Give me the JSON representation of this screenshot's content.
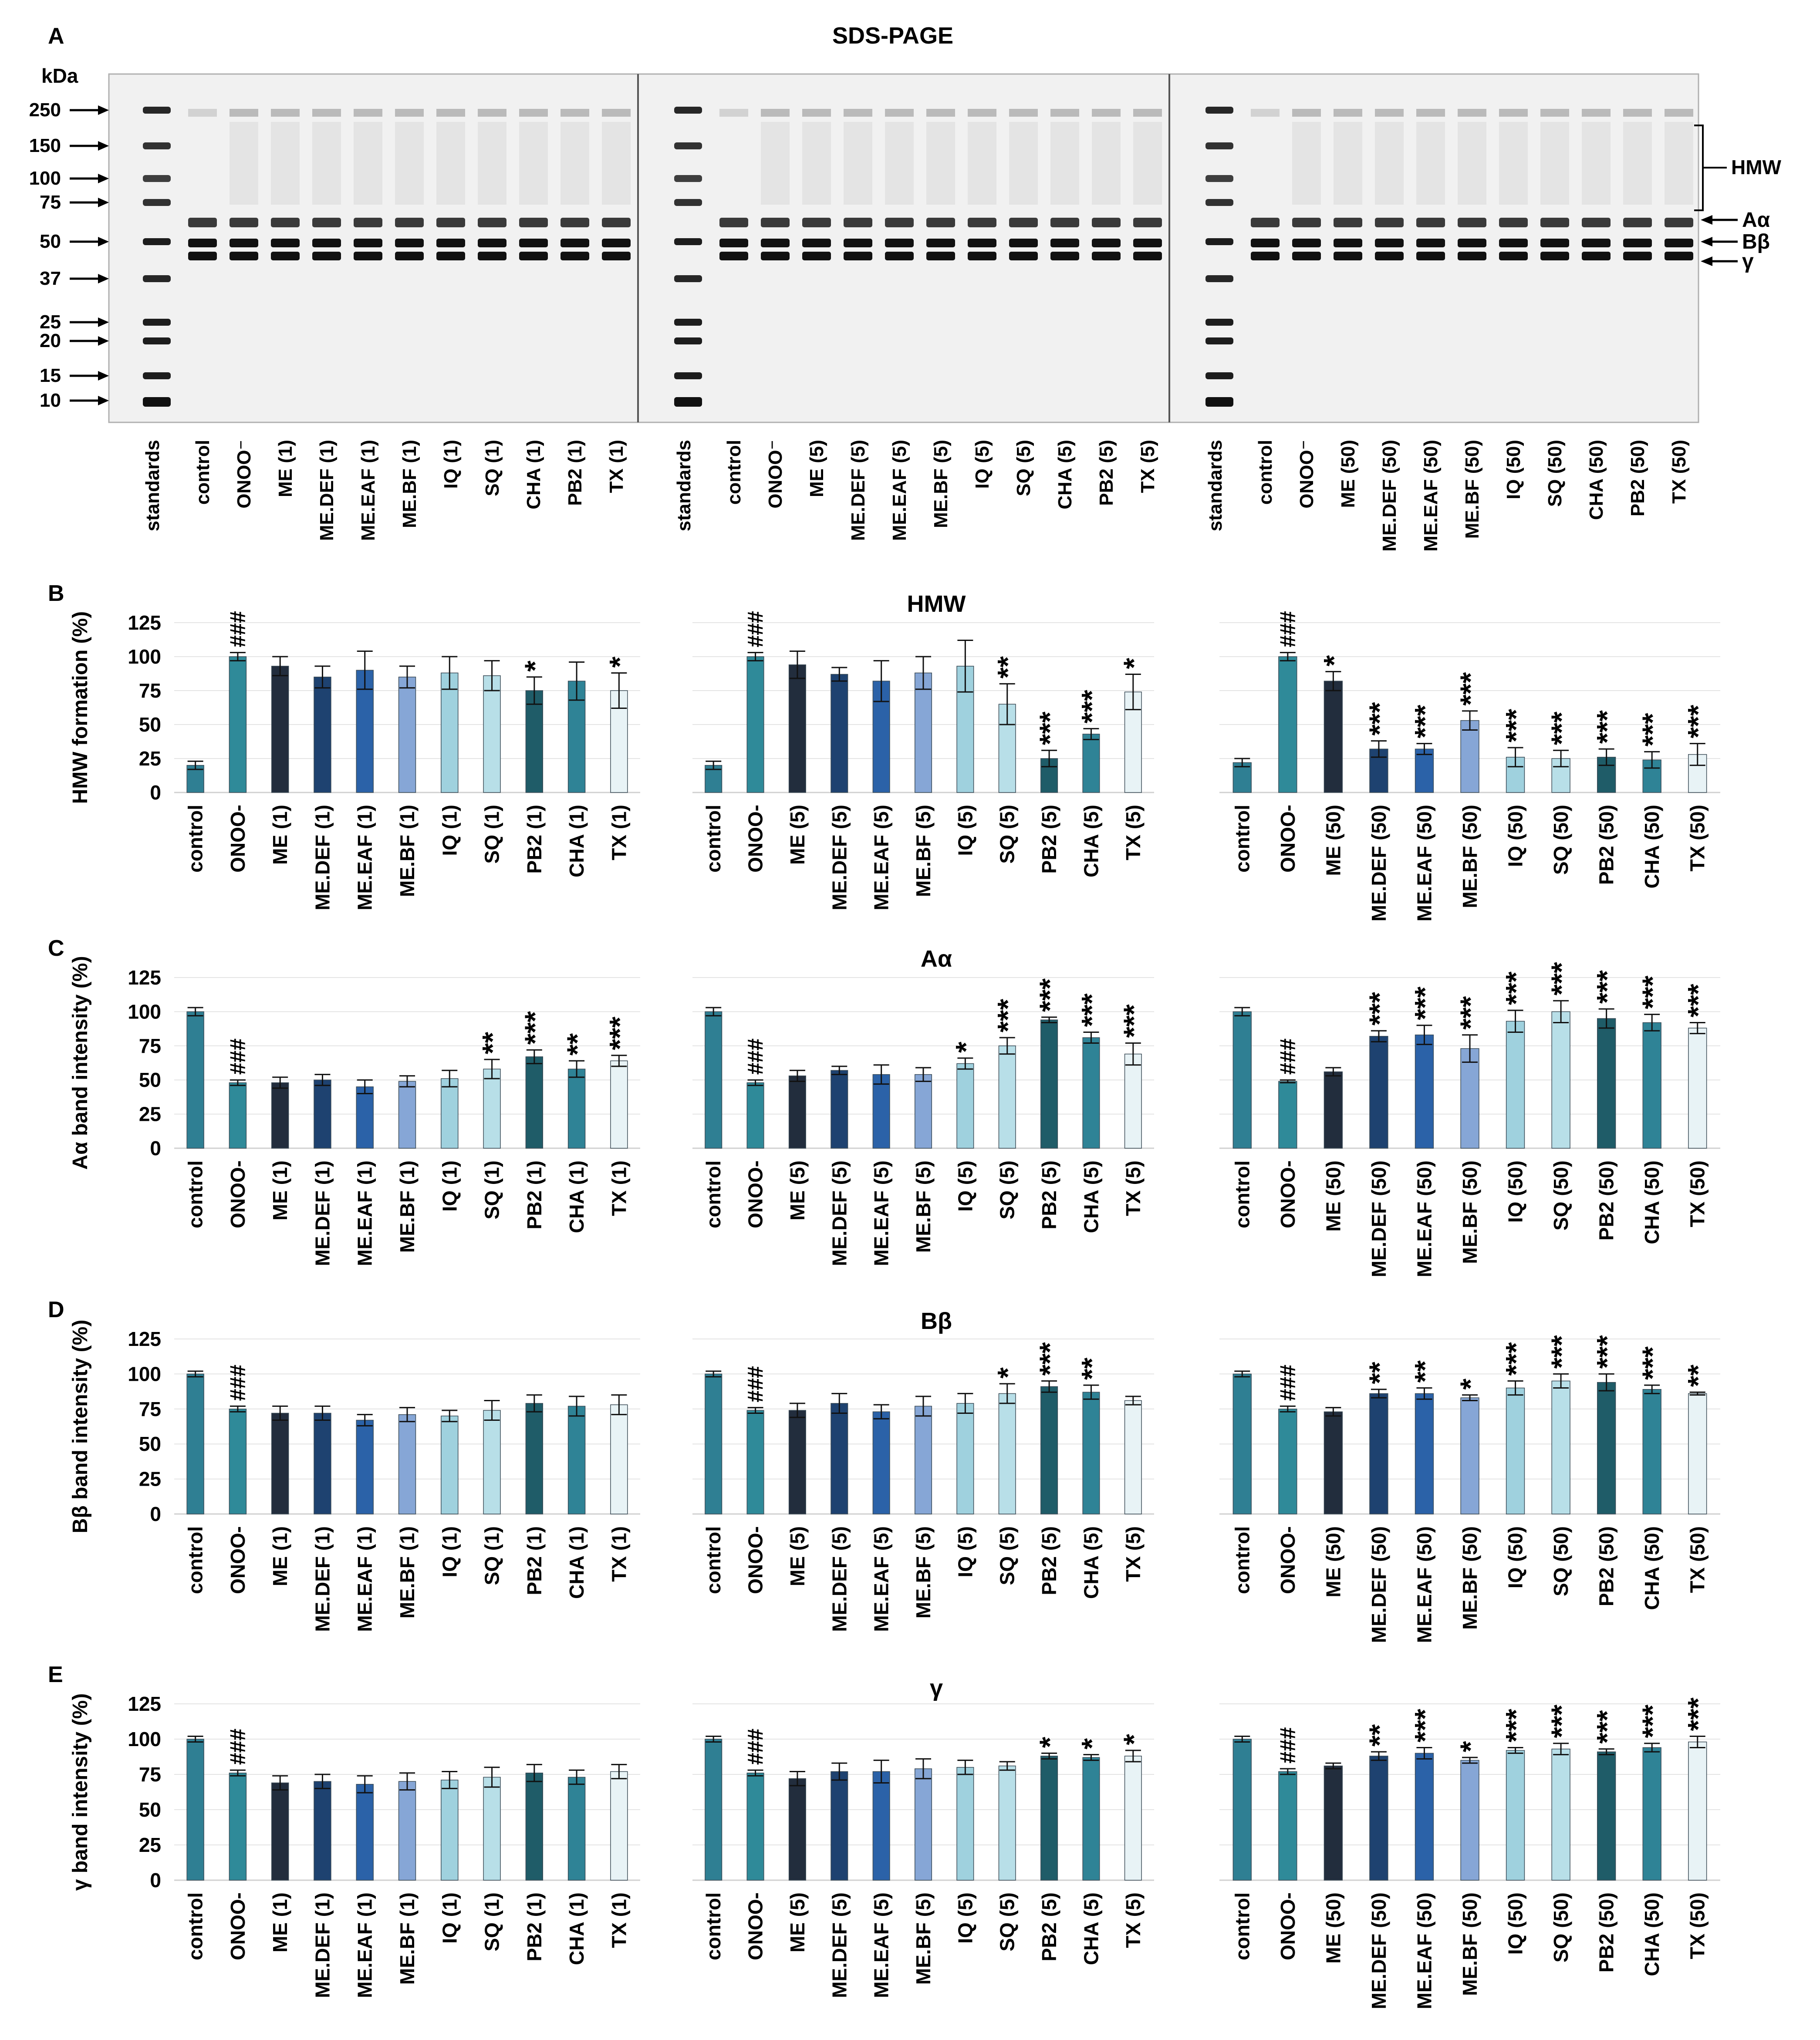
{
  "title": "SDS-PAGE",
  "gel": {
    "panel_letter": "A",
    "unit_label": "kDa",
    "markers": [
      "250",
      "150",
      "100",
      "75",
      "50",
      "37",
      "25",
      "20",
      "15",
      "10"
    ],
    "band_labels": {
      "hmw": "HMW",
      "a": "Aα",
      "b": "Bβ",
      "g": "γ"
    },
    "lane_groups": [
      [
        "standards",
        "control",
        "ONOO⁻",
        "ME (1)",
        "ME.DEF (1)",
        "ME.EAF (1)",
        "ME.BF (1)",
        "IQ (1)",
        "SQ (1)",
        "CHA (1)",
        "PB2 (1)",
        "TX (1)"
      ],
      [
        "standards",
        "control",
        "ONOO⁻",
        "ME (5)",
        "ME.DEF (5)",
        "ME.EAF (5)",
        "ME.BF (5)",
        "IQ (5)",
        "SQ (5)",
        "CHA (5)",
        "PB2 (5)",
        "TX (5)"
      ],
      [
        "standards",
        "control",
        "ONOO⁻",
        "ME (50)",
        "ME.DEF (50)",
        "ME.EAF (50)",
        "ME.BF (50)",
        "IQ (50)",
        "SQ (50)",
        "CHA (50)",
        "PB2 (50)",
        "TX (50)"
      ]
    ]
  },
  "colors": {
    "control": "#2f7f93",
    "ONOO": "#2f8a99",
    "ME": "#222d3d",
    "ME.DEF": "#1e4270",
    "ME.EAF": "#2b62a8",
    "ME.BF": "#86a6d6",
    "IQ": "#9fd1de",
    "SQ": "#b8dfe8",
    "PB2": "#1f5c68",
    "CHA": "#2f8396",
    "TX": "#e8f3f6"
  },
  "y_ticks": [
    "125",
    "100",
    "75",
    "50",
    "25",
    "0"
  ],
  "chart_data": [
    {
      "type": "bar",
      "letter": "B",
      "title": "HMW",
      "ylabel": "HMW formation (%)",
      "ylim": [
        0,
        125
      ],
      "groups": [
        {
          "categories": [
            "control",
            "ONOO-",
            "ME (1)",
            "ME.DEF (1)",
            "ME.EAF (1)",
            "ME.BF (1)",
            "IQ (1)",
            "SQ (1)",
            "PB2 (1)",
            "CHA (1)",
            "TX (1)"
          ],
          "colors": [
            "control",
            "ONOO",
            "ME",
            "ME.DEF",
            "ME.EAF",
            "ME.BF",
            "IQ",
            "SQ",
            "PB2",
            "CHA",
            "TX"
          ],
          "values": [
            20,
            100,
            93,
            85,
            90,
            85,
            88,
            86,
            75,
            82,
            75
          ],
          "errors": [
            3,
            3,
            7,
            8,
            14,
            8,
            12,
            11,
            10,
            14,
            13
          ],
          "marks": [
            "",
            "###",
            "",
            "",
            "",
            "",
            "",
            "",
            "*",
            "",
            "*"
          ]
        },
        {
          "categories": [
            "control",
            "ONOO-",
            "ME (5)",
            "ME.DEF (5)",
            "ME.EAF (5)",
            "ME.BF (5)",
            "IQ (5)",
            "SQ (5)",
            "PB2 (5)",
            "CHA (5)",
            "TX (5)"
          ],
          "colors": [
            "control",
            "ONOO",
            "ME",
            "ME.DEF",
            "ME.EAF",
            "ME.BF",
            "IQ",
            "SQ",
            "PB2",
            "CHA",
            "TX"
          ],
          "values": [
            20,
            100,
            94,
            87,
            82,
            88,
            93,
            65,
            25,
            43,
            74
          ],
          "errors": [
            3,
            3,
            10,
            5,
            15,
            12,
            19,
            15,
            6,
            4,
            13
          ],
          "marks": [
            "",
            "###",
            "",
            "",
            "",
            "",
            "",
            "**",
            "***",
            "***",
            "*"
          ]
        },
        {
          "categories": [
            "control",
            "ONOO-",
            "ME (50)",
            "ME.DEF (50)",
            "ME.EAF (50)",
            "ME.BF (50)",
            "IQ (50)",
            "SQ (50)",
            "PB2 (50)",
            "CHA (50)",
            "TX (50)"
          ],
          "colors": [
            "control",
            "ONOO",
            "ME",
            "ME.DEF",
            "ME.EAF",
            "ME.BF",
            "IQ",
            "SQ",
            "PB2",
            "CHA",
            "TX"
          ],
          "values": [
            22,
            100,
            82,
            32,
            32,
            53,
            26,
            25,
            26,
            24,
            28
          ],
          "errors": [
            3,
            3,
            7,
            6,
            4,
            7,
            7,
            6,
            6,
            6,
            8
          ],
          "marks": [
            "",
            "###",
            "*",
            "***",
            "***",
            "***",
            "***",
            "***",
            "***",
            "***",
            "***"
          ]
        }
      ]
    },
    {
      "type": "bar",
      "letter": "C",
      "title": "Aα",
      "ylabel": "Aα band intensity (%)",
      "ylim": [
        0,
        125
      ],
      "groups": [
        {
          "categories": [
            "control",
            "ONOO-",
            "ME (1)",
            "ME.DEF (1)",
            "ME.EAF (1)",
            "ME.BF (1)",
            "IQ (1)",
            "SQ (1)",
            "PB2 (1)",
            "CHA (1)",
            "TX (1)"
          ],
          "colors": [
            "control",
            "ONOO",
            "ME",
            "ME.DEF",
            "ME.EAF",
            "ME.BF",
            "IQ",
            "SQ",
            "PB2",
            "CHA",
            "TX"
          ],
          "values": [
            100,
            48,
            48,
            50,
            45,
            49,
            51,
            58,
            67,
            58,
            64
          ],
          "errors": [
            3,
            2,
            4,
            4,
            5,
            4,
            6,
            7,
            5,
            6,
            4
          ],
          "marks": [
            "",
            "###",
            "",
            "",
            "",
            "",
            "",
            "**",
            "***",
            "**",
            "***"
          ]
        },
        {
          "categories": [
            "control",
            "ONOO-",
            "ME (5)",
            "ME.DEF (5)",
            "ME.EAF (5)",
            "ME.BF (5)",
            "IQ (5)",
            "SQ (5)",
            "PB2 (5)",
            "CHA (5)",
            "TX (5)"
          ],
          "colors": [
            "control",
            "ONOO",
            "ME",
            "ME.DEF",
            "ME.EAF",
            "ME.BF",
            "IQ",
            "SQ",
            "PB2",
            "CHA",
            "TX"
          ],
          "values": [
            100,
            48,
            53,
            57,
            54,
            54,
            62,
            75,
            94,
            81,
            69
          ],
          "errors": [
            3,
            2,
            4,
            3,
            7,
            5,
            4,
            6,
            2,
            4,
            8
          ],
          "marks": [
            "",
            "###",
            "",
            "",
            "",
            "",
            "*",
            "***",
            "***",
            "***",
            "***"
          ]
        },
        {
          "categories": [
            "control",
            "ONOO-",
            "ME (50)",
            "ME.DEF (50)",
            "ME.EAF (50)",
            "ME.BF (50)",
            "IQ (50)",
            "SQ (50)",
            "PB2 (50)",
            "CHA (50)",
            "TX (50)"
          ],
          "colors": [
            "control",
            "ONOO",
            "ME",
            "ME.DEF",
            "ME.EAF",
            "ME.BF",
            "IQ",
            "SQ",
            "PB2",
            "CHA",
            "TX"
          ],
          "values": [
            100,
            49,
            56,
            82,
            83,
            73,
            93,
            100,
            95,
            92,
            88
          ],
          "errors": [
            3,
            1,
            3,
            4,
            7,
            10,
            8,
            8,
            7,
            6,
            4
          ],
          "marks": [
            "",
            "###",
            "",
            "***",
            "***",
            "***",
            "***",
            "***",
            "***",
            "***",
            "***"
          ]
        }
      ]
    },
    {
      "type": "bar",
      "letter": "D",
      "title": "Bβ",
      "ylabel": "Bβ band intensity (%)",
      "ylim": [
        0,
        125
      ],
      "groups": [
        {
          "categories": [
            "control",
            "ONOO-",
            "ME (1)",
            "ME.DEF (1)",
            "ME.EAF (1)",
            "ME.BF (1)",
            "IQ (1)",
            "SQ (1)",
            "PB2 (1)",
            "CHA (1)",
            "TX (1)"
          ],
          "colors": [
            "control",
            "ONOO",
            "ME",
            "ME.DEF",
            "ME.EAF",
            "ME.BF",
            "IQ",
            "SQ",
            "PB2",
            "CHA",
            "TX"
          ],
          "values": [
            100,
            75,
            72,
            72,
            67,
            71,
            70,
            74,
            79,
            77,
            78
          ],
          "errors": [
            2,
            2,
            5,
            5,
            4,
            5,
            4,
            7,
            6,
            7,
            7
          ],
          "marks": [
            "",
            "###",
            "",
            "",
            "",
            "",
            "",
            "",
            "",
            "",
            ""
          ]
        },
        {
          "categories": [
            "control",
            "ONOO-",
            "ME (5)",
            "ME.DEF (5)",
            "ME.EAF (5)",
            "ME.BF (5)",
            "IQ (5)",
            "SQ (5)",
            "PB2 (5)",
            "CHA (5)",
            "TX (5)"
          ],
          "colors": [
            "control",
            "ONOO",
            "ME",
            "ME.DEF",
            "ME.EAF",
            "ME.BF",
            "IQ",
            "SQ",
            "PB2",
            "CHA",
            "TX"
          ],
          "values": [
            100,
            74,
            74,
            79,
            73,
            77,
            79,
            86,
            91,
            87,
            81
          ],
          "errors": [
            2,
            2,
            5,
            7,
            5,
            7,
            7,
            7,
            4,
            5,
            3
          ],
          "marks": [
            "",
            "###",
            "",
            "",
            "",
            "",
            "",
            "*",
            "***",
            "**",
            ""
          ]
        },
        {
          "categories": [
            "control",
            "ONOO-",
            "ME (50)",
            "ME.DEF (50)",
            "ME.EAF (50)",
            "ME.BF (50)",
            "IQ (50)",
            "SQ (50)",
            "PB2 (50)",
            "CHA (50)",
            "TX (50)"
          ],
          "colors": [
            "control",
            "ONOO",
            "ME",
            "ME.DEF",
            "ME.EAF",
            "ME.BF",
            "IQ",
            "SQ",
            "PB2",
            "CHA",
            "TX"
          ],
          "values": [
            100,
            75,
            73,
            86,
            86,
            83,
            90,
            95,
            94,
            89,
            86
          ],
          "errors": [
            2,
            2,
            3,
            3,
            4,
            2,
            5,
            5,
            6,
            3,
            1
          ],
          "marks": [
            "",
            "###",
            "",
            "**",
            "**",
            "*",
            "***",
            "***",
            "***",
            "***",
            "**"
          ]
        }
      ]
    },
    {
      "type": "bar",
      "letter": "E",
      "title": "γ",
      "ylabel": "γ band intensity (%)",
      "ylim": [
        0,
        125
      ],
      "groups": [
        {
          "categories": [
            "control",
            "ONOO-",
            "ME (1)",
            "ME.DEF (1)",
            "ME.EAF (1)",
            "ME.BF (1)",
            "IQ (1)",
            "SQ (1)",
            "PB2 (1)",
            "CHA (1)",
            "TX (1)"
          ],
          "colors": [
            "control",
            "ONOO",
            "ME",
            "ME.DEF",
            "ME.EAF",
            "ME.BF",
            "IQ",
            "SQ",
            "PB2",
            "CHA",
            "TX"
          ],
          "values": [
            100,
            76,
            69,
            70,
            68,
            70,
            71,
            73,
            76,
            73,
            77
          ],
          "errors": [
            2,
            2,
            5,
            5,
            6,
            6,
            6,
            7,
            6,
            5,
            5
          ],
          "marks": [
            "",
            "###",
            "",
            "",
            "",
            "",
            "",
            "",
            "",
            "",
            ""
          ]
        },
        {
          "categories": [
            "control",
            "ONOO-",
            "ME (5)",
            "ME.DEF (5)",
            "ME.EAF (5)",
            "ME.BF (5)",
            "IQ (5)",
            "SQ (5)",
            "PB2 (5)",
            "CHA (5)",
            "TX (5)"
          ],
          "colors": [
            "control",
            "ONOO",
            "ME",
            "ME.DEF",
            "ME.EAF",
            "ME.BF",
            "IQ",
            "SQ",
            "PB2",
            "CHA",
            "TX"
          ],
          "values": [
            100,
            76,
            72,
            77,
            77,
            79,
            80,
            81,
            88,
            87,
            88
          ],
          "errors": [
            2,
            2,
            5,
            6,
            8,
            7,
            5,
            3,
            2,
            2,
            4
          ],
          "marks": [
            "",
            "###",
            "",
            "",
            "",
            "",
            "",
            "",
            "*",
            "*",
            "*"
          ]
        },
        {
          "categories": [
            "control",
            "ONOO-",
            "ME (50)",
            "ME.DEF (50)",
            "ME.EAF (50)",
            "ME.BF (50)",
            "IQ (50)",
            "SQ (50)",
            "PB2 (50)",
            "CHA (50)",
            "TX (50)"
          ],
          "colors": [
            "control",
            "ONOO",
            "ME",
            "ME.DEF",
            "ME.EAF",
            "ME.BF",
            "IQ",
            "SQ",
            "PB2",
            "CHA",
            "TX"
          ],
          "values": [
            100,
            77,
            81,
            88,
            90,
            85,
            92,
            93,
            91,
            94,
            98
          ],
          "errors": [
            2,
            2,
            2,
            3,
            4,
            2,
            2,
            4,
            2,
            3,
            4
          ],
          "marks": [
            "",
            "###",
            "",
            "**",
            "***",
            "*",
            "***",
            "***",
            "***",
            "***",
            "***"
          ]
        }
      ]
    }
  ]
}
